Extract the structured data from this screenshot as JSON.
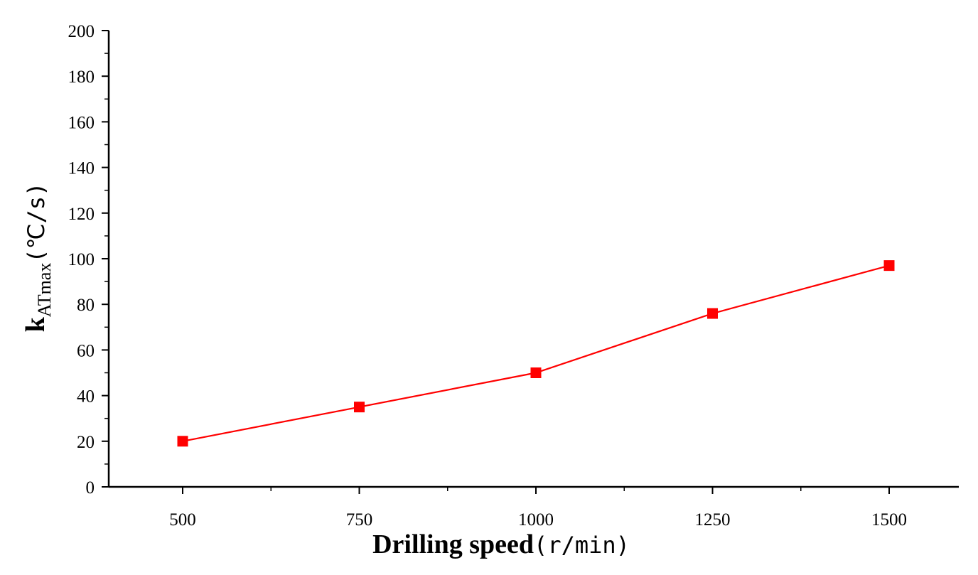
{
  "chart_data": {
    "type": "line",
    "x": [
      500,
      750,
      1000,
      1250,
      1500
    ],
    "series": [
      {
        "values": [
          20,
          35,
          50,
          76,
          97
        ],
        "color": "#ff0000",
        "marker": "square"
      }
    ],
    "xlabel": "Drilling speed",
    "xlabel_unit": "(r/min)",
    "ylabel_main": "k",
    "ylabel_sub": "ATmax",
    "ylabel_unit": "(℃/s)",
    "xlim": [
      390,
      1600
    ],
    "ylim": [
      0,
      200
    ],
    "x_ticks": [
      500,
      750,
      1000,
      1250,
      1500
    ],
    "x_tick_labels": [
      "500",
      "750",
      "1000",
      "1250",
      "1500"
    ],
    "y_ticks": [
      0,
      20,
      40,
      60,
      80,
      100,
      120,
      140,
      160,
      180,
      200
    ],
    "y_tick_labels": [
      "0",
      "20",
      "40",
      "60",
      "80",
      "100",
      "120",
      "140",
      "160",
      "180",
      "200"
    ],
    "grid": false,
    "legend": "none"
  }
}
